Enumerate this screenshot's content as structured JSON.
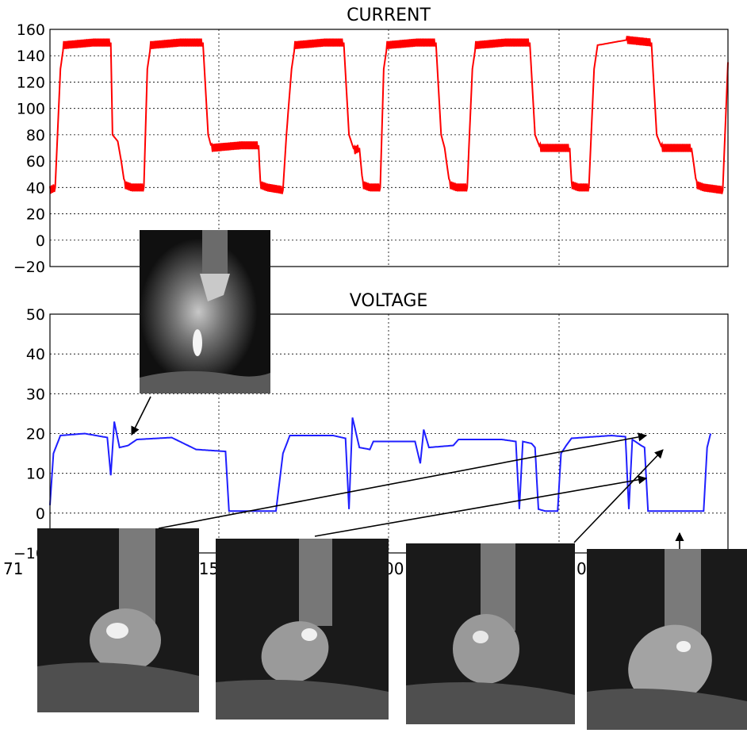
{
  "chart_data": [
    {
      "type": "line",
      "title": "CURRENT",
      "xlabel": "",
      "ylabel": "",
      "ylim": [
        -20,
        160
      ],
      "yticks": [
        "160",
        "140",
        "120",
        "100",
        "80",
        "60",
        "40",
        "20",
        "0",
        "−20"
      ],
      "grid": true,
      "series": [
        {
          "color": "#ff0000",
          "description": "pulsed current waveform",
          "points": [
            [
              0,
              38
            ],
            [
              3,
              40
            ],
            [
              6,
              130
            ],
            [
              8,
              148
            ],
            [
              25,
              150
            ],
            [
              35,
              150
            ],
            [
              36,
              80
            ],
            [
              39,
              75
            ],
            [
              41,
              60
            ],
            [
              43,
              42
            ],
            [
              47,
              40
            ],
            [
              54,
              40
            ],
            [
              56,
              130
            ],
            [
              58,
              148
            ],
            [
              75,
              150
            ],
            [
              88,
              150
            ],
            [
              91,
              80
            ],
            [
              93,
              70
            ],
            [
              110,
              72
            ],
            [
              120,
              72
            ],
            [
              121,
              42
            ],
            [
              125,
              40
            ],
            [
              134,
              38
            ],
            [
              136,
              80
            ],
            [
              139,
              130
            ],
            [
              141,
              148
            ],
            [
              158,
              150
            ],
            [
              169,
              150
            ],
            [
              172,
              80
            ],
            [
              175,
              68
            ],
            [
              178,
              70
            ],
            [
              180,
              42
            ],
            [
              184,
              40
            ],
            [
              190,
              40
            ],
            [
              192,
              130
            ],
            [
              194,
              148
            ],
            [
              211,
              150
            ],
            [
              222,
              150
            ],
            [
              225,
              80
            ],
            [
              227,
              70
            ],
            [
              230,
              42
            ],
            [
              234,
              40
            ],
            [
              240,
              40
            ],
            [
              243,
              130
            ],
            [
              245,
              148
            ],
            [
              262,
              150
            ],
            [
              276,
              150
            ],
            [
              279,
              80
            ],
            [
              282,
              70
            ],
            [
              299,
              70
            ],
            [
              300,
              42
            ],
            [
              304,
              40
            ],
            [
              310,
              40
            ],
            [
              313,
              130
            ],
            [
              315,
              148
            ],
            [
              332,
              152
            ],
            [
              346,
              150
            ],
            [
              349,
              80
            ],
            [
              352,
              70
            ],
            [
              369,
              70
            ],
            [
              372,
              42
            ],
            [
              376,
              40
            ],
            [
              387,
              38
            ],
            [
              390,
              135
            ]
          ]
        }
      ]
    },
    {
      "type": "line",
      "title": "VOLTAGE",
      "xlabel": "",
      "ylabel": "",
      "ylim": [
        -10,
        50
      ],
      "yticks": [
        "50",
        "40",
        "30",
        "20",
        "10",
        "0",
        "−10"
      ],
      "xticks_partial": [
        "71",
        "715",
        "00",
        "0"
      ],
      "grid": true,
      "series": [
        {
          "color": "#0000ff",
          "description": "arc voltage waveform",
          "points": [
            [
              0,
              2
            ],
            [
              2,
              15
            ],
            [
              6,
              19.5
            ],
            [
              20,
              20
            ],
            [
              33,
              19
            ],
            [
              35,
              9.5
            ],
            [
              37,
              23
            ],
            [
              40,
              16.5
            ],
            [
              45,
              17
            ],
            [
              50,
              18.5
            ],
            [
              70,
              19
            ],
            [
              84,
              16
            ],
            [
              101,
              15.5
            ],
            [
              103,
              0.5
            ],
            [
              130,
              0.5
            ],
            [
              134,
              15
            ],
            [
              138,
              19.5
            ],
            [
              163,
              19.5
            ],
            [
              170,
              18.8
            ],
            [
              172,
              1
            ],
            [
              174,
              24
            ],
            [
              178,
              16.5
            ],
            [
              184,
              16
            ],
            [
              186,
              18
            ],
            [
              210,
              18
            ],
            [
              213,
              12.5
            ],
            [
              215,
              21
            ],
            [
              218,
              16.5
            ],
            [
              232,
              17
            ],
            [
              235,
              18.5
            ],
            [
              260,
              18.5
            ],
            [
              268,
              18
            ],
            [
              270,
              1
            ],
            [
              272,
              18
            ],
            [
              277,
              17.5
            ],
            [
              279,
              16.5
            ],
            [
              281,
              1
            ],
            [
              285,
              0.5
            ],
            [
              292,
              0.5
            ],
            [
              294,
              15
            ],
            [
              297,
              17
            ],
            [
              300,
              18.8
            ],
            [
              323,
              19.5
            ],
            [
              331,
              19.2
            ],
            [
              333,
              1
            ],
            [
              335,
              18.5
            ],
            [
              340,
              17
            ],
            [
              342,
              16.5
            ],
            [
              344,
              0.5
            ],
            [
              376,
              0.5
            ],
            [
              378,
              16.5
            ],
            [
              380,
              20
            ]
          ]
        }
      ]
    }
  ],
  "annotations": {
    "arrow_count": 5,
    "frames": [
      "arc-photo-top",
      "droplet-frame-1",
      "droplet-frame-2",
      "droplet-frame-3",
      "droplet-frame-4"
    ]
  }
}
